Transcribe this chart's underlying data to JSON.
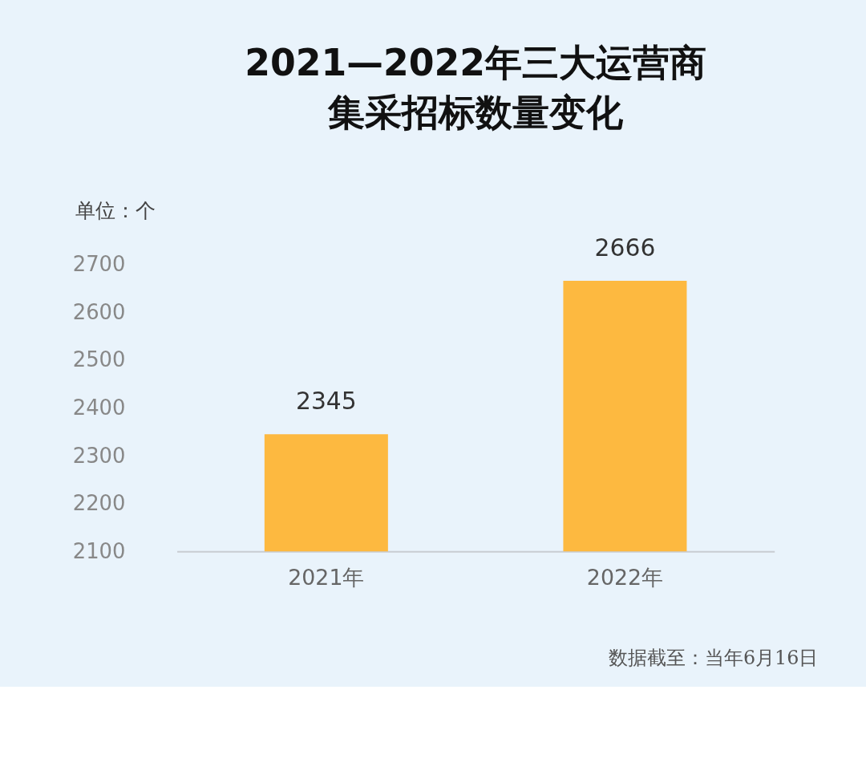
{
  "chart_data": {
    "type": "bar",
    "title": "2021—2022年三大运营商集采招标数量变化",
    "ylabel": "单位：个",
    "categories": [
      "2021年",
      "2022年"
    ],
    "values": [
      2345,
      2666
    ],
    "color": "#fdb940",
    "ylim": [
      2100,
      2700
    ],
    "yticks": [
      2100,
      2200,
      2300,
      2400,
      2500,
      2600,
      2700
    ],
    "grid": false,
    "data_labels": true,
    "annotations": [
      "数据截至：当年6月16日"
    ]
  }
}
